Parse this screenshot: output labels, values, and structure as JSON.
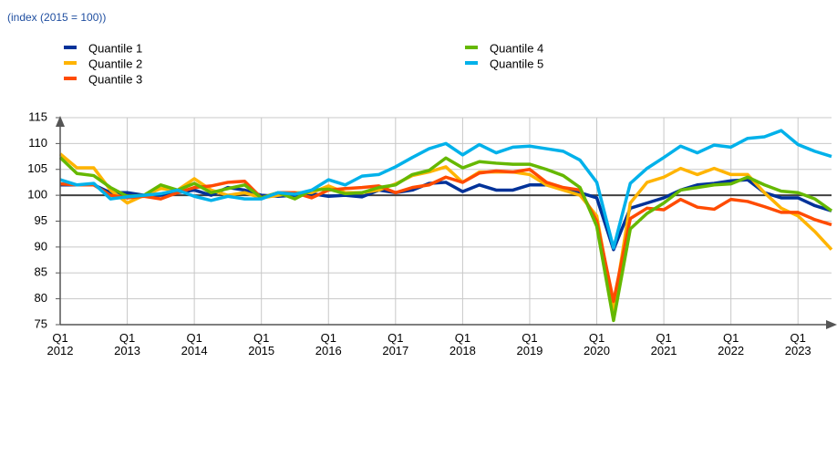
{
  "chart_data": {
    "type": "line",
    "axis_title": "(index (2015 = 100))",
    "categories": [
      "Q1 2012",
      null,
      null,
      null,
      "Q1 2013",
      null,
      null,
      null,
      "Q1 2014",
      null,
      null,
      null,
      "Q1 2015",
      null,
      null,
      null,
      "Q1 2016",
      null,
      null,
      null,
      "Q1 2017",
      null,
      null,
      null,
      "Q1 2018",
      null,
      null,
      null,
      "Q1 2019",
      null,
      null,
      null,
      "Q1 2020",
      null,
      null,
      null,
      "Q1 2021",
      null,
      null,
      null,
      "Q1 2022",
      null,
      null,
      null,
      "Q1 2023",
      null,
      null
    ],
    "series": [
      {
        "name": "Quantile 1",
        "color": "#003299",
        "values": [
          102,
          102,
          102,
          100.5,
          100.5,
          100,
          100,
          100.5,
          101,
          100,
          101.5,
          101,
          100,
          99.8,
          100,
          100.3,
          99.8,
          100,
          99.7,
          101,
          100.5,
          101,
          102.3,
          102.5,
          100.7,
          102,
          101,
          101,
          102,
          102,
          101.3,
          100.5,
          99.5,
          89.5,
          97.5,
          98.5,
          99.5,
          101,
          102,
          102.3,
          102.8,
          103,
          100.5,
          99.5,
          99.5,
          98,
          97
        ]
      },
      {
        "name": "Quantile 2",
        "color": "#ffb400",
        "values": [
          108,
          105.3,
          105.3,
          101,
          98.5,
          100,
          101.3,
          101,
          103.2,
          101,
          100,
          100.5,
          99.5,
          100,
          100.5,
          100.5,
          101.8,
          100.5,
          100.5,
          101,
          102.2,
          103.8,
          104.5,
          105.5,
          102.5,
          104.5,
          104.5,
          104.5,
          104,
          102,
          101,
          100,
          96,
          78,
          98.5,
          102.5,
          103.5,
          105.2,
          104,
          105.2,
          104,
          104,
          100.5,
          97.5,
          96,
          93,
          89.5
        ]
      },
      {
        "name": "Quantile 3",
        "color": "#ff4b00",
        "values": [
          102.2,
          102,
          102,
          100,
          99.5,
          99.8,
          99.3,
          100.5,
          101.5,
          101.8,
          102.5,
          102.7,
          99.5,
          100.5,
          100.5,
          99.5,
          101,
          101.3,
          101.5,
          101.8,
          100.5,
          101.5,
          102,
          103.5,
          102.5,
          104.3,
          104.7,
          104.5,
          105,
          102.5,
          101.5,
          101,
          95,
          79.5,
          95.5,
          97.5,
          97.2,
          99.2,
          97.7,
          97.3,
          99.2,
          98.8,
          97.8,
          96.7,
          96.7,
          95.3,
          94.3
        ]
      },
      {
        "name": "Quantile 4",
        "color": "#65b800",
        "values": [
          107.3,
          104.2,
          103.8,
          101.5,
          99.8,
          100,
          102,
          101,
          102.3,
          100.5,
          101.3,
          102,
          99.5,
          100.5,
          99.3,
          101,
          101.2,
          100.3,
          100.5,
          101.5,
          102,
          104,
          104.8,
          107.2,
          105.3,
          106.5,
          106.2,
          106,
          106,
          105,
          103.8,
          101.5,
          94,
          75.8,
          93.5,
          96.5,
          98.5,
          101,
          101.5,
          102,
          102.2,
          103.5,
          102,
          100.8,
          100.5,
          99.3,
          97
        ]
      },
      {
        "name": "Quantile 5",
        "color": "#00b1ea",
        "values": [
          103,
          102,
          102.3,
          99.3,
          99.7,
          100,
          100.3,
          101,
          99.8,
          99,
          99.8,
          99.3,
          99.3,
          100.5,
          100.2,
          101,
          103,
          102,
          103.7,
          104,
          105.5,
          107.3,
          109,
          110,
          107.8,
          109.8,
          108.2,
          109.3,
          109.5,
          109,
          108.5,
          106.8,
          102.5,
          89.8,
          102.3,
          105.2,
          107.3,
          109.5,
          108.2,
          109.7,
          109.3,
          111,
          111.3,
          112.5,
          109.8,
          108.5,
          107.5
        ]
      }
    ],
    "ylim": [
      75,
      115
    ],
    "yticks": [
      75,
      80,
      85,
      90,
      95,
      100,
      105,
      110,
      115
    ],
    "reference_line": 100,
    "grid": true,
    "legend": "top"
  }
}
